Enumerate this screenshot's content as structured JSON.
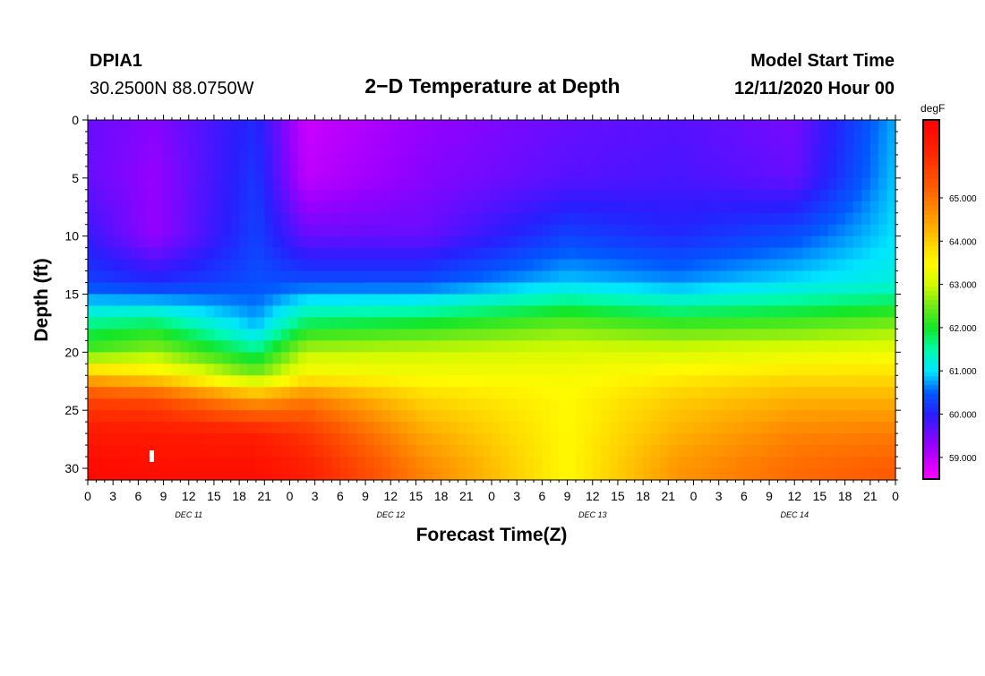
{
  "header": {
    "station": "DPIA1",
    "location": "30.2500N 88.0750W",
    "title": "2−D Temperature at Depth",
    "model_label": "Model Start Time",
    "model_time": "12/11/2020 Hour 00"
  },
  "chart_data": {
    "type": "heatmap",
    "title": "2−D Temperature at Depth",
    "xlabel": "Forecast Time(Z)",
    "ylabel": "Depth (ft)",
    "x_range_hours": [
      0,
      96
    ],
    "y_range_ft": [
      0,
      31
    ],
    "y_ticks": [
      "0",
      "5",
      "10",
      "15",
      "20",
      "25",
      "30"
    ],
    "x_tick_labels": [
      "0",
      "3",
      "6",
      "9",
      "12",
      "15",
      "18",
      "21",
      "0",
      "3",
      "6",
      "9",
      "12",
      "15",
      "18",
      "21",
      "0",
      "3",
      "6",
      "9",
      "12",
      "15",
      "18",
      "21",
      "0",
      "3",
      "6",
      "9",
      "12",
      "15",
      "18",
      "21",
      "0"
    ],
    "day_labels": [
      "DEC 11",
      "DEC 12",
      "DEC 13",
      "DEC 14"
    ],
    "colorbar": {
      "unit": "degF",
      "range": [
        58.5,
        66.8
      ],
      "ticks": [
        "59.000",
        "60.000",
        "61.000",
        "62.000",
        "63.000",
        "64.000",
        "65.000"
      ]
    },
    "temperature_profiles": {
      "note_units": "degF by depth (ft) at selected forecast hours",
      "depths_ft": [
        0,
        5,
        10,
        14,
        16,
        18,
        20,
        22,
        24,
        27,
        30
      ],
      "profiles": [
        {
          "hour": 0,
          "temps": [
            59.6,
            59.6,
            59.9,
            60.3,
            61.0,
            61.8,
            62.3,
            64.2,
            65.6,
            66.3,
            66.6
          ]
        },
        {
          "hour": 8,
          "temps": [
            59.4,
            59.3,
            59.3,
            60.1,
            61.0,
            62.0,
            62.7,
            63.8,
            65.5,
            66.3,
            66.5
          ]
        },
        {
          "hour": 20,
          "temps": [
            60.1,
            60.2,
            60.3,
            60.4,
            60.6,
            60.9,
            61.7,
            62.6,
            64.5,
            66.2,
            66.5
          ]
        },
        {
          "hour": 26,
          "temps": [
            58.9,
            59.0,
            59.6,
            60.4,
            61.2,
            62.0,
            62.9,
            63.5,
            64.9,
            65.8,
            66.2
          ]
        },
        {
          "hour": 40,
          "temps": [
            59.3,
            59.4,
            59.6,
            60.4,
            61.3,
            62.2,
            63.0,
            63.4,
            63.9,
            64.4,
            64.8
          ]
        },
        {
          "hour": 57,
          "temps": [
            59.6,
            59.7,
            60.3,
            60.9,
            61.8,
            62.6,
            63.1,
            63.4,
            63.5,
            63.5,
            63.5
          ]
        },
        {
          "hour": 70,
          "temps": [
            59.7,
            59.8,
            60.1,
            60.7,
            61.5,
            62.4,
            63.1,
            63.6,
            64.0,
            64.3,
            64.6
          ]
        },
        {
          "hour": 84,
          "temps": [
            59.5,
            59.6,
            60.4,
            61.0,
            61.7,
            62.5,
            63.2,
            63.8,
            64.3,
            64.8,
            65.1
          ]
        },
        {
          "hour": 96,
          "temps": [
            60.8,
            60.9,
            61.0,
            61.2,
            61.9,
            62.7,
            63.3,
            63.8,
            64.3,
            64.9,
            65.3
          ]
        }
      ]
    }
  }
}
